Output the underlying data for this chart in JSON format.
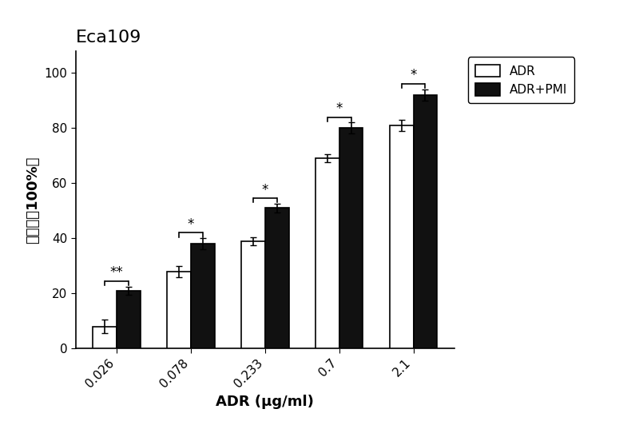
{
  "title": "Eca109",
  "categories": [
    "0.026",
    "0.078",
    "0.233",
    "0.7",
    "2.1"
  ],
  "adr_values": [
    8,
    28,
    39,
    69,
    81
  ],
  "adr_errors": [
    2.5,
    2.0,
    1.5,
    1.5,
    2.0
  ],
  "adr_pmi_values": [
    21,
    38,
    51,
    80,
    92
  ],
  "adr_pmi_errors": [
    1.5,
    2.0,
    1.5,
    2.0,
    2.0
  ],
  "significance": [
    "**",
    "*",
    "*",
    "*",
    "*"
  ],
  "bar_width": 0.32,
  "adr_color": "#ffffff",
  "adr_edgecolor": "#000000",
  "adr_pmi_color": "#111111",
  "adr_pmi_edgecolor": "#000000",
  "xlabel": "ADR (μg/ml)",
  "ylabel": "抑制率（100%）",
  "ylim": [
    0,
    108
  ],
  "yticks": [
    0,
    20,
    40,
    60,
    80,
    100
  ],
  "legend_labels": [
    "ADR",
    "ADR+PMI"
  ],
  "title_fontsize": 16,
  "axis_fontsize": 13,
  "tick_fontsize": 11,
  "background_color": "#ffffff"
}
